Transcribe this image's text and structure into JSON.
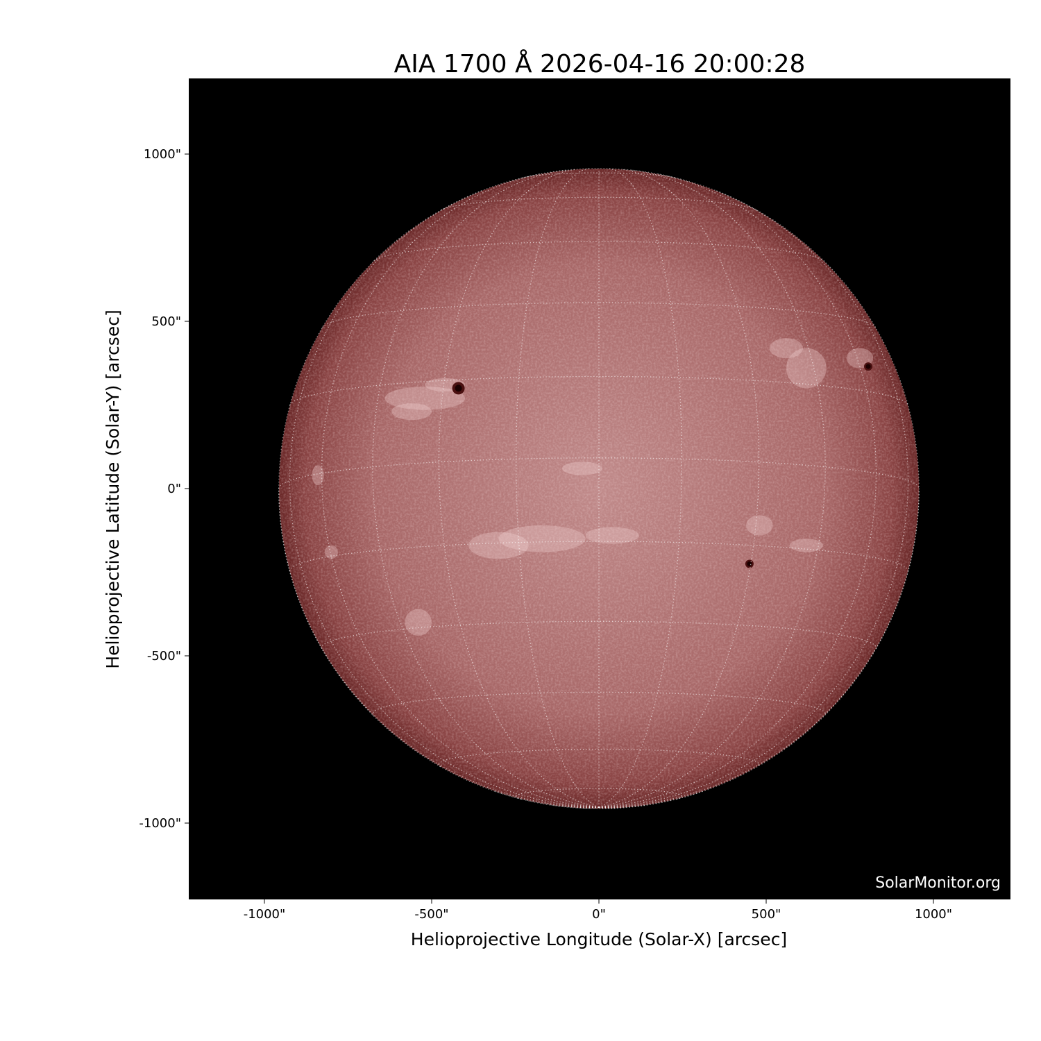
{
  "chart_data": {
    "type": "heatmap",
    "title": "AIA 1700 Å 2026-04-16 20:00:28",
    "xlabel": "Helioprojective Longitude (Solar-X) [arcsec]",
    "ylabel": "Helioprojective Latitude (Solar-Y) [arcsec]",
    "xlim": [
      -1226,
      1230
    ],
    "ylim": [
      -1228,
      1226
    ],
    "xticks": [
      -1000,
      -500,
      0,
      500,
      1000
    ],
    "yticks": [
      -1000,
      -500,
      0,
      500,
      1000
    ],
    "xtick_labels": [
      "-1000\"",
      "-500\"",
      "0\"",
      "500\"",
      "1000\""
    ],
    "ytick_labels": [
      "-1000\"",
      "-500\"",
      "0\"",
      "500\"",
      "1000\""
    ],
    "grid": "heliographic lat/lon every 15°, dotted white",
    "solar_radius_arcsec": 957,
    "b0_deg": -5.5,
    "colormap": "sdoaia1700",
    "colors": {
      "disk_center": "#c08a8a",
      "disk_limb": "#6e2a2a",
      "background": "#000000"
    },
    "sunspots_arcsec": [
      [
        -420,
        300
      ],
      [
        805,
        365
      ],
      [
        450,
        -225
      ]
    ],
    "watermark": "SolarMonitor.org"
  }
}
